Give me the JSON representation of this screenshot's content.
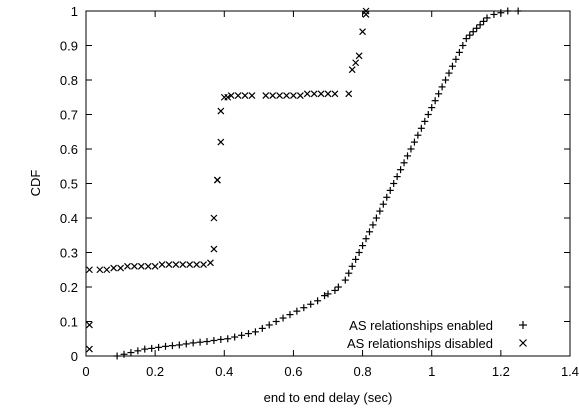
{
  "chart_data": {
    "type": "scatter",
    "title": "",
    "xlabel": "end to end delay (sec)",
    "ylabel": "CDF",
    "xlim": [
      0,
      1.4
    ],
    "ylim": [
      0,
      1
    ],
    "x_ticks": [
      "0",
      "0.2",
      "0.4",
      "0.6",
      "0.8",
      "1",
      "1.2",
      "1.4"
    ],
    "y_ticks": [
      "0",
      "0.1",
      "0.2",
      "0.3",
      "0.4",
      "0.5",
      "0.6",
      "0.7",
      "0.8",
      "0.9",
      "1"
    ],
    "legend_position": "bottom-right",
    "grid": false,
    "series": [
      {
        "name": "AS relationships enabled",
        "marker": "plus",
        "x": [
          0.09,
          0.11,
          0.13,
          0.15,
          0.17,
          0.19,
          0.21,
          0.23,
          0.25,
          0.27,
          0.29,
          0.31,
          0.33,
          0.35,
          0.37,
          0.39,
          0.41,
          0.43,
          0.45,
          0.47,
          0.49,
          0.51,
          0.53,
          0.55,
          0.57,
          0.59,
          0.61,
          0.63,
          0.65,
          0.67,
          0.69,
          0.7,
          0.72,
          0.73,
          0.75,
          0.76,
          0.77,
          0.78,
          0.79,
          0.8,
          0.81,
          0.82,
          0.83,
          0.84,
          0.85,
          0.86,
          0.87,
          0.88,
          0.89,
          0.9,
          0.91,
          0.92,
          0.93,
          0.94,
          0.95,
          0.96,
          0.97,
          0.98,
          0.99,
          1.0,
          1.01,
          1.02,
          1.03,
          1.04,
          1.05,
          1.06,
          1.07,
          1.08,
          1.09,
          1.1,
          1.11,
          1.12,
          1.13,
          1.14,
          1.15,
          1.16,
          1.18,
          1.2,
          1.22,
          1.25
        ],
        "y": [
          0.0,
          0.005,
          0.01,
          0.015,
          0.02,
          0.022,
          0.025,
          0.028,
          0.03,
          0.032,
          0.035,
          0.038,
          0.04,
          0.042,
          0.045,
          0.048,
          0.05,
          0.055,
          0.06,
          0.065,
          0.07,
          0.08,
          0.09,
          0.1,
          0.11,
          0.12,
          0.13,
          0.14,
          0.15,
          0.16,
          0.175,
          0.18,
          0.19,
          0.2,
          0.22,
          0.24,
          0.26,
          0.28,
          0.3,
          0.32,
          0.34,
          0.36,
          0.38,
          0.4,
          0.42,
          0.44,
          0.46,
          0.48,
          0.5,
          0.52,
          0.54,
          0.56,
          0.58,
          0.6,
          0.62,
          0.64,
          0.66,
          0.68,
          0.7,
          0.72,
          0.74,
          0.76,
          0.78,
          0.8,
          0.82,
          0.84,
          0.86,
          0.88,
          0.9,
          0.92,
          0.93,
          0.94,
          0.95,
          0.96,
          0.97,
          0.98,
          0.99,
          0.995,
          1.0,
          1.0
        ]
      },
      {
        "name": "AS relationships disabled",
        "marker": "cross",
        "x": [
          0.01,
          0.01,
          0.01,
          0.04,
          0.06,
          0.08,
          0.1,
          0.12,
          0.14,
          0.16,
          0.18,
          0.2,
          0.22,
          0.24,
          0.26,
          0.28,
          0.3,
          0.32,
          0.34,
          0.36,
          0.37,
          0.37,
          0.38,
          0.38,
          0.39,
          0.39,
          0.4,
          0.41,
          0.42,
          0.44,
          0.46,
          0.48,
          0.52,
          0.54,
          0.56,
          0.58,
          0.6,
          0.62,
          0.64,
          0.66,
          0.68,
          0.7,
          0.72,
          0.76,
          0.77,
          0.78,
          0.79,
          0.8,
          0.81,
          0.81
        ],
        "y": [
          0.02,
          0.09,
          0.25,
          0.25,
          0.25,
          0.255,
          0.255,
          0.26,
          0.26,
          0.26,
          0.26,
          0.26,
          0.265,
          0.265,
          0.265,
          0.265,
          0.265,
          0.265,
          0.265,
          0.27,
          0.31,
          0.4,
          0.51,
          0.51,
          0.62,
          0.71,
          0.75,
          0.75,
          0.755,
          0.755,
          0.755,
          0.755,
          0.755,
          0.755,
          0.755,
          0.755,
          0.755,
          0.755,
          0.76,
          0.76,
          0.76,
          0.76,
          0.76,
          0.76,
          0.83,
          0.85,
          0.87,
          0.94,
          0.99,
          1.0
        ]
      }
    ]
  }
}
